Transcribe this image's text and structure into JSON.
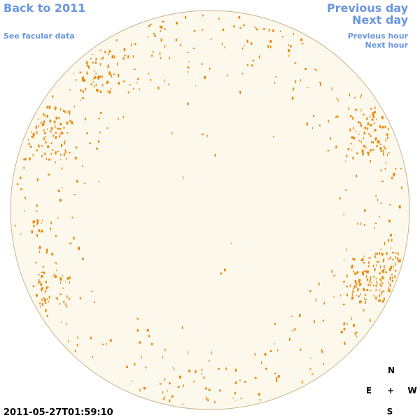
{
  "nav": {
    "back": "Back to 2011",
    "facular": "See facular data",
    "previous_day": "Previous day",
    "next_day": "Next day",
    "previous_hour": "Previous hour",
    "next_hour": "Next hour"
  },
  "timestamp": "2011-05-27T01:59:10",
  "compass": {
    "north": "N",
    "east": "E",
    "center": "+",
    "west": "W",
    "south": "S"
  }
}
